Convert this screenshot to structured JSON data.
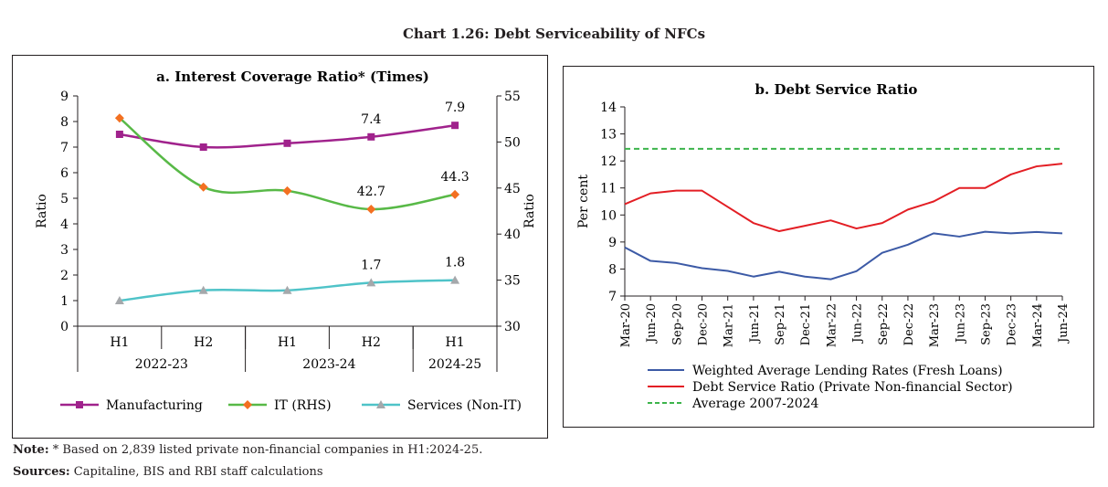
{
  "figure": {
    "title": "Chart 1.26: Debt Serviceability of NFCs",
    "note_label": "Note:",
    "note_text": " * Based on 2,839 listed private non-financial companies in H1:2024-25.",
    "sources_label": "Sources:",
    "sources_text": " Capitaline, BIS and RBI staff calculations"
  },
  "chart_data": [
    {
      "type": "line",
      "title": "a. Interest Coverage Ratio* (Times)",
      "categories": [
        "H1",
        "H2",
        "H1",
        "H2",
        "H1"
      ],
      "category_groups": [
        {
          "label": "2022-23",
          "span": 2
        },
        {
          "label": "2023-24",
          "span": 2
        },
        {
          "label": "2024-25",
          "span": 1
        }
      ],
      "ylabel": "Ratio",
      "ylabel_right": "Ratio",
      "ylim": [
        0,
        9
      ],
      "yticks": [
        0,
        1,
        2,
        3,
        4,
        5,
        6,
        7,
        8,
        9
      ],
      "ylim_right": [
        30,
        55
      ],
      "yticks_right": [
        30,
        35,
        40,
        45,
        50,
        55
      ],
      "legend_position": "bottom",
      "series": [
        {
          "name": "Manufacturing",
          "axis": "left",
          "color": "#a0228c",
          "marker": "square",
          "values": [
            7.5,
            7.0,
            7.15,
            7.4,
            7.85
          ],
          "data_labels": [
            "",
            "",
            "",
            "7.4",
            "7.9"
          ]
        },
        {
          "name": "IT (RHS)",
          "axis": "right",
          "color": "#58b947",
          "marker_color": "#f37021",
          "marker": "diamond",
          "values": [
            52.6,
            45.1,
            44.7,
            42.7,
            44.3
          ],
          "data_labels": [
            "",
            "",
            "",
            "42.7",
            "44.3"
          ]
        },
        {
          "name": "Services (Non-IT)",
          "axis": "left",
          "color": "#4fc3c8",
          "marker_color": "#a5a8ab",
          "marker": "triangle",
          "values": [
            1.0,
            1.4,
            1.4,
            1.7,
            1.8
          ],
          "data_labels": [
            "",
            "",
            "",
            "1.7",
            "1.8"
          ]
        }
      ]
    },
    {
      "type": "line",
      "title": "b. Debt Service Ratio",
      "x": [
        "Mar-20",
        "Jun-20",
        "Sep-20",
        "Dec-20",
        "Mar-21",
        "Jun-21",
        "Sep-21",
        "Dec-21",
        "Mar-22",
        "Jun-22",
        "Sep-22",
        "Dec-22",
        "Mar-23",
        "Jun-23",
        "Sep-23",
        "Dec-23",
        "Mar-24",
        "Jun-24"
      ],
      "ylabel": "Per cent",
      "ylim": [
        7,
        14
      ],
      "yticks": [
        7,
        8,
        9,
        10,
        11,
        12,
        13,
        14
      ],
      "legend_position": "bottom",
      "series": [
        {
          "name": "Weighted Average Lending Rates (Fresh Loans)",
          "color": "#3c5aa6",
          "dash": "",
          "values": [
            8.8,
            8.3,
            8.22,
            8.03,
            7.93,
            7.72,
            7.9,
            7.72,
            7.62,
            7.92,
            8.6,
            8.9,
            9.32,
            9.2,
            9.38,
            9.32,
            9.37,
            9.32
          ]
        },
        {
          "name": "Debt Service Ratio (Private Non-financial Sector)",
          "color": "#e31e24",
          "dash": "",
          "values": [
            10.4,
            10.8,
            10.9,
            10.9,
            10.3,
            9.7,
            9.4,
            9.6,
            9.8,
            9.5,
            9.7,
            10.2,
            10.5,
            11.0,
            11.0,
            11.5,
            11.8,
            11.9
          ]
        },
        {
          "name": "Average 2007-2024",
          "color": "#3cb44b",
          "dash": "6,4",
          "values": [
            12.45,
            12.45,
            12.45,
            12.45,
            12.45,
            12.45,
            12.45,
            12.45,
            12.45,
            12.45,
            12.45,
            12.45,
            12.45,
            12.45,
            12.45,
            12.45,
            12.45,
            12.45
          ]
        }
      ]
    }
  ]
}
